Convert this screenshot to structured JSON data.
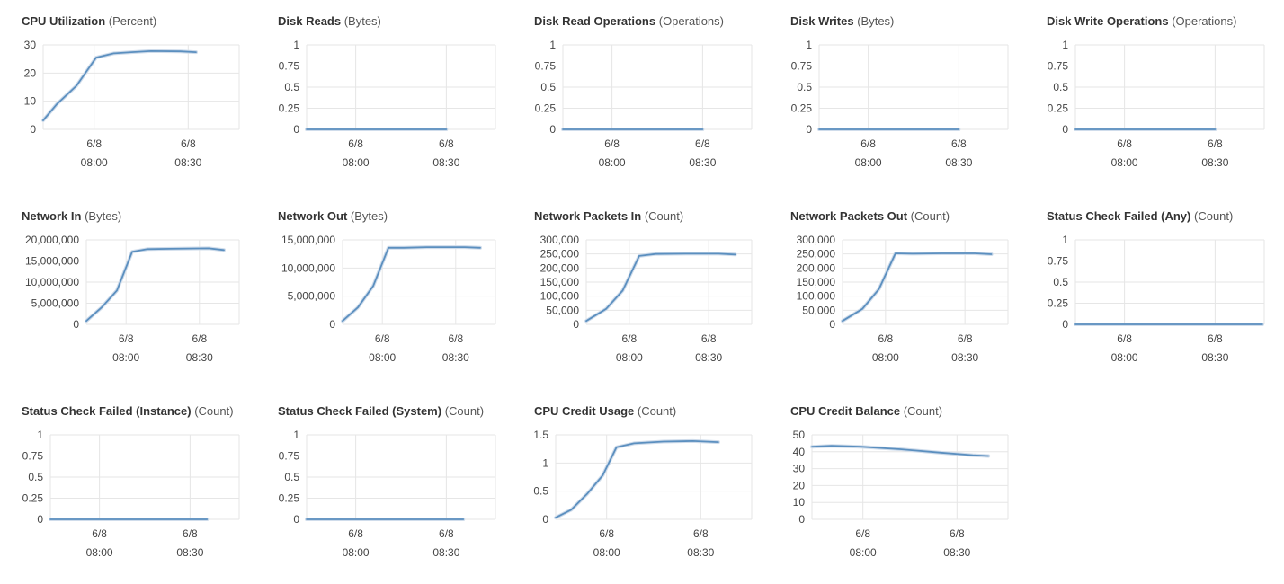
{
  "panels": [
    {
      "metric": "CPU Utilization",
      "unit": "(Percent)",
      "chart_data": {
        "type": "line",
        "yticks": [
          "0",
          "10",
          "20",
          "30"
        ],
        "ylim": [
          0,
          30
        ],
        "xticks": [
          {
            "date": "6/8",
            "time": "08:00"
          },
          {
            "date": "6/8",
            "time": "08:30"
          }
        ],
        "series": [
          {
            "points": [
              [
                0,
                3.2
              ],
              [
                0.07,
                9
              ],
              [
                0.17,
                15.5
              ],
              [
                0.27,
                25.5
              ],
              [
                0.36,
                27
              ],
              [
                0.45,
                27.4
              ],
              [
                0.55,
                27.8
              ],
              [
                0.7,
                27.7
              ],
              [
                0.78,
                27.4
              ]
            ]
          }
        ],
        "line_color": "#5b8fbf"
      }
    },
    {
      "metric": "Disk Reads",
      "unit": "(Bytes)",
      "chart_data": {
        "type": "line",
        "yticks": [
          "0",
          "0.25",
          "0.5",
          "0.75",
          "1"
        ],
        "ylim": [
          0,
          1
        ],
        "xticks": [
          {
            "date": "6/8",
            "time": "08:00"
          },
          {
            "date": "6/8",
            "time": "08:30"
          }
        ],
        "series": [
          {
            "points": [
              [
                0,
                0
              ],
              [
                0.74,
                0
              ]
            ]
          }
        ],
        "line_color": "#5b8fbf"
      }
    },
    {
      "metric": "Disk Read Operations",
      "unit": "(Operations)",
      "chart_data": {
        "type": "line",
        "yticks": [
          "0",
          "0.25",
          "0.5",
          "0.75",
          "1"
        ],
        "ylim": [
          0,
          1
        ],
        "xticks": [
          {
            "date": "6/8",
            "time": "08:00"
          },
          {
            "date": "6/8",
            "time": "08:30"
          }
        ],
        "series": [
          {
            "points": [
              [
                0,
                0
              ],
              [
                0.74,
                0
              ]
            ]
          }
        ],
        "line_color": "#5b8fbf"
      }
    },
    {
      "metric": "Disk Writes",
      "unit": "(Bytes)",
      "chart_data": {
        "type": "line",
        "yticks": [
          "0",
          "0.25",
          "0.5",
          "0.75",
          "1"
        ],
        "ylim": [
          0,
          1
        ],
        "xticks": [
          {
            "date": "6/8",
            "time": "08:00"
          },
          {
            "date": "6/8",
            "time": "08:30"
          }
        ],
        "series": [
          {
            "points": [
              [
                0,
                0
              ],
              [
                0.74,
                0
              ]
            ]
          }
        ],
        "line_color": "#5b8fbf"
      }
    },
    {
      "metric": "Disk Write Operations",
      "unit": "(Operations)",
      "chart_data": {
        "type": "line",
        "yticks": [
          "0",
          "0.25",
          "0.5",
          "0.75",
          "1"
        ],
        "ylim": [
          0,
          1
        ],
        "xticks": [
          {
            "date": "6/8",
            "time": "08:00"
          },
          {
            "date": "6/8",
            "time": "08:30"
          }
        ],
        "series": [
          {
            "points": [
              [
                0,
                0
              ],
              [
                0.74,
                0
              ]
            ]
          }
        ],
        "line_color": "#5b8fbf"
      }
    },
    {
      "metric": "Network In",
      "unit": "(Bytes)",
      "chart_data": {
        "type": "line",
        "yticks": [
          "0",
          "5,000,000",
          "10,000,000",
          "15,000,000",
          "20,000,000"
        ],
        "ylim": [
          0,
          20000000
        ],
        "xticks": [
          {
            "date": "6/8",
            "time": "08:00"
          },
          {
            "date": "6/8",
            "time": "08:30"
          }
        ],
        "series": [
          {
            "points": [
              [
                0,
                800000
              ],
              [
                0.1,
                4000000
              ],
              [
                0.2,
                8000000
              ],
              [
                0.3,
                17200000
              ],
              [
                0.4,
                17800000
              ],
              [
                0.55,
                17900000
              ],
              [
                0.8,
                18000000
              ],
              [
                0.9,
                17600000
              ]
            ]
          }
        ],
        "line_color": "#5b8fbf"
      }
    },
    {
      "metric": "Network Out",
      "unit": "(Bytes)",
      "chart_data": {
        "type": "line",
        "yticks": [
          "0",
          "5,000,000",
          "10,000,000",
          "15,000,000"
        ],
        "ylim": [
          0,
          15000000
        ],
        "xticks": [
          {
            "date": "6/8",
            "time": "08:00"
          },
          {
            "date": "6/8",
            "time": "08:30"
          }
        ],
        "series": [
          {
            "points": [
              [
                0,
                600000
              ],
              [
                0.1,
                3000000
              ],
              [
                0.2,
                6800000
              ],
              [
                0.3,
                13600000
              ],
              [
                0.4,
                13600000
              ],
              [
                0.55,
                13700000
              ],
              [
                0.8,
                13700000
              ],
              [
                0.9,
                13600000
              ]
            ]
          }
        ],
        "line_color": "#5b8fbf"
      }
    },
    {
      "metric": "Network Packets In",
      "unit": "(Count)",
      "chart_data": {
        "type": "line",
        "yticks": [
          "0",
          "50,000",
          "100,000",
          "150,000",
          "200,000",
          "250,000",
          "300,000"
        ],
        "ylim": [
          0,
          300000
        ],
        "xticks": [
          {
            "date": "6/8",
            "time": "08:00"
          },
          {
            "date": "6/8",
            "time": "08:30"
          }
        ],
        "series": [
          {
            "points": [
              [
                0,
                12000
              ],
              [
                0.12,
                55000
              ],
              [
                0.22,
                120000
              ],
              [
                0.32,
                243000
              ],
              [
                0.42,
                250000
              ],
              [
                0.6,
                251000
              ],
              [
                0.8,
                251000
              ],
              [
                0.9,
                248000
              ]
            ]
          }
        ],
        "line_color": "#5b8fbf"
      }
    },
    {
      "metric": "Network Packets Out",
      "unit": "(Count)",
      "chart_data": {
        "type": "line",
        "yticks": [
          "0",
          "50,000",
          "100,000",
          "150,000",
          "200,000",
          "250,000",
          "300,000"
        ],
        "ylim": [
          0,
          300000
        ],
        "xticks": [
          {
            "date": "6/8",
            "time": "08:00"
          },
          {
            "date": "6/8",
            "time": "08:30"
          }
        ],
        "series": [
          {
            "points": [
              [
                0,
                12000
              ],
              [
                0.12,
                55000
              ],
              [
                0.22,
                125000
              ],
              [
                0.32,
                252000
              ],
              [
                0.42,
                251000
              ],
              [
                0.6,
                252000
              ],
              [
                0.8,
                252000
              ],
              [
                0.9,
                249000
              ]
            ]
          }
        ],
        "line_color": "#5b8fbf"
      }
    },
    {
      "metric": "Status Check Failed (Any)",
      "unit": "(Count)",
      "chart_data": {
        "type": "line",
        "yticks": [
          "0",
          "0.25",
          "0.5",
          "0.75",
          "1"
        ],
        "ylim": [
          0,
          1
        ],
        "xticks": [
          {
            "date": "6/8",
            "time": "08:00"
          },
          {
            "date": "6/8",
            "time": "08:30"
          }
        ],
        "series": [
          {
            "points": [
              [
                0,
                0
              ],
              [
                0.99,
                0
              ]
            ]
          }
        ],
        "line_color": "#5b8fbf"
      }
    },
    {
      "metric": "Status Check Failed (Instance)",
      "unit": "(Count)",
      "chart_data": {
        "type": "line",
        "yticks": [
          "0",
          "0.25",
          "0.5",
          "0.75",
          "1"
        ],
        "ylim": [
          0,
          1
        ],
        "xticks": [
          {
            "date": "6/8",
            "time": "08:00"
          },
          {
            "date": "6/8",
            "time": "08:30"
          }
        ],
        "series": [
          {
            "points": [
              [
                0,
                0
              ],
              [
                0.83,
                0
              ]
            ]
          }
        ],
        "line_color": "#5b8fbf"
      }
    },
    {
      "metric": "Status Check Failed (System)",
      "unit": "(Count)",
      "chart_data": {
        "type": "line",
        "yticks": [
          "0",
          "0.25",
          "0.5",
          "0.75",
          "1"
        ],
        "ylim": [
          0,
          1
        ],
        "xticks": [
          {
            "date": "6/8",
            "time": "08:00"
          },
          {
            "date": "6/8",
            "time": "08:30"
          }
        ],
        "series": [
          {
            "points": [
              [
                0,
                0
              ],
              [
                0.83,
                0
              ]
            ]
          }
        ],
        "line_color": "#5b8fbf"
      }
    },
    {
      "metric": "CPU Credit Usage",
      "unit": "(Count)",
      "chart_data": {
        "type": "line",
        "yticks": [
          "0",
          "0.5",
          "1",
          "1.5"
        ],
        "ylim": [
          0,
          1.5
        ],
        "xticks": [
          {
            "date": "6/8",
            "time": "08:00"
          },
          {
            "date": "6/8",
            "time": "08:30"
          }
        ],
        "series": [
          {
            "points": [
              [
                0,
                0.03
              ],
              [
                0.08,
                0.17
              ],
              [
                0.16,
                0.45
              ],
              [
                0.24,
                0.78
              ],
              [
                0.31,
                1.28
              ],
              [
                0.4,
                1.35
              ],
              [
                0.55,
                1.38
              ],
              [
                0.7,
                1.39
              ],
              [
                0.83,
                1.37
              ]
            ]
          }
        ],
        "line_color": "#5b8fbf"
      }
    },
    {
      "metric": "CPU Credit Balance",
      "unit": "(Count)",
      "chart_data": {
        "type": "line",
        "yticks": [
          "0",
          "10",
          "20",
          "30",
          "40",
          "50"
        ],
        "ylim": [
          0,
          50
        ],
        "xticks": [
          {
            "date": "6/8",
            "time": "08:00"
          },
          {
            "date": "6/8",
            "time": "08:30"
          }
        ],
        "series": [
          {
            "points": [
              [
                0,
                43
              ],
              [
                0.1,
                43.5
              ],
              [
                0.25,
                43
              ],
              [
                0.45,
                41.5
              ],
              [
                0.65,
                39.5
              ],
              [
                0.82,
                38
              ],
              [
                0.9,
                37.5
              ]
            ]
          }
        ],
        "line_color": "#5b8fbf"
      }
    }
  ]
}
